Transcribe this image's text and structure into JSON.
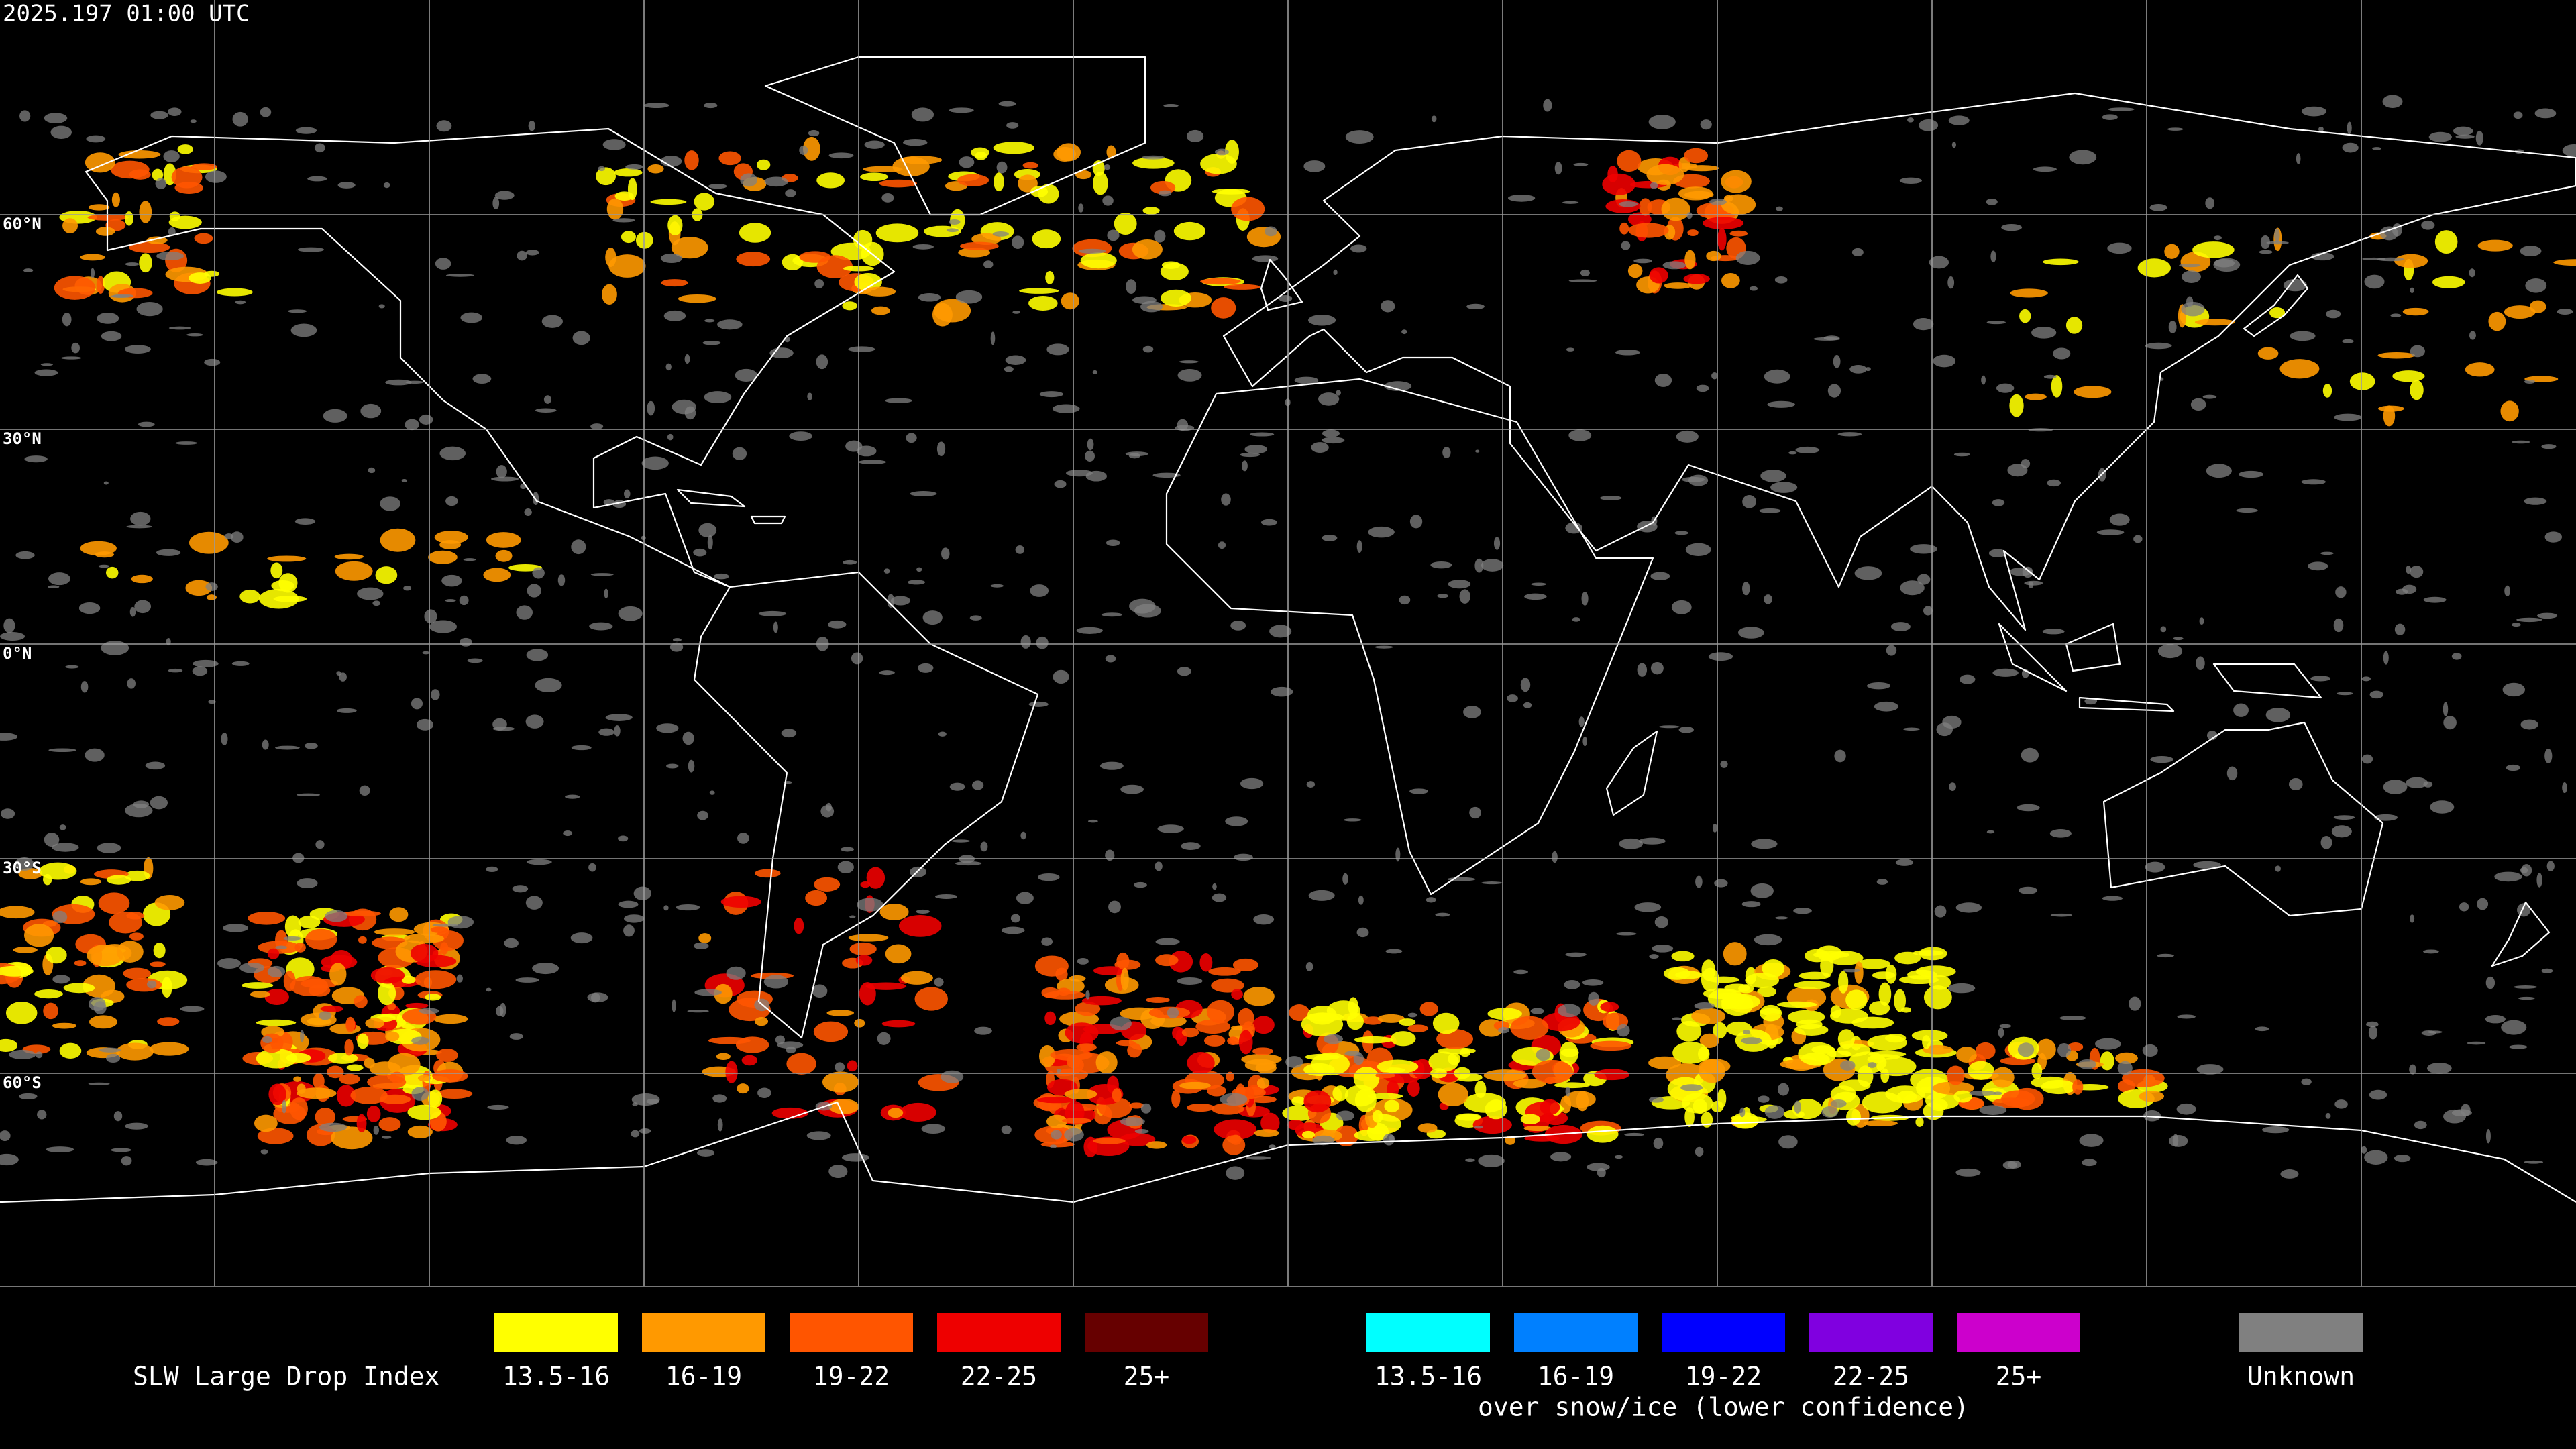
{
  "header": {
    "timestamp": "2025.197 01:00 UTC"
  },
  "map": {
    "lat_labels": [
      "60°N",
      "30°N",
      "0°N",
      "30°S",
      "60°S"
    ]
  },
  "legend": {
    "title": "SLW Large Drop Index",
    "groups": [
      {
        "items": [
          {
            "label": "13.5-16",
            "color": "#ffff00"
          },
          {
            "label": "16-19",
            "color": "#ff9900"
          },
          {
            "label": "19-22",
            "color": "#ff5500"
          },
          {
            "label": "22-25",
            "color": "#ee0000"
          },
          {
            "label": "25+",
            "color": "#660000"
          }
        ]
      },
      {
        "items": [
          {
            "label": "13.5-16",
            "color": "#00ffff"
          },
          {
            "label": "16-19",
            "color": "#0080ff"
          },
          {
            "label": "19-22",
            "color": "#0000ff"
          },
          {
            "label": "22-25",
            "color": "#8000e0"
          },
          {
            "label": "25+",
            "color": "#cc00cc"
          }
        ],
        "note": "over snow/ice (lower confidence)"
      }
    ],
    "unknown": {
      "label": "Unknown",
      "color": "#808080"
    }
  }
}
